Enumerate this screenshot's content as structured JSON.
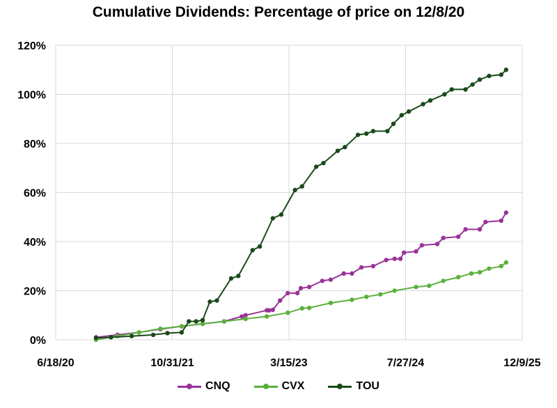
{
  "chart_data": {
    "type": "line",
    "title": "Cumulative Dividends: Percentage of price on 12/8/20",
    "xlabel": "",
    "ylabel": "",
    "x_axis": {
      "min": "2020-06-18",
      "max": "2025-12-09",
      "tick_labels": [
        "6/18/20",
        "10/31/21",
        "3/15/23",
        "7/27/24",
        "12/9/25"
      ]
    },
    "y_axis": {
      "min": 0,
      "max": 120,
      "tick_labels": [
        "0%",
        "20%",
        "40%",
        "60%",
        "80%",
        "100%",
        "120%"
      ]
    },
    "grid": true,
    "legend_position": "bottom",
    "series": [
      {
        "name": "CNQ",
        "color": "#993399",
        "points": [
          [
            "2020-12-08",
            1.0
          ],
          [
            "2021-03-10",
            2.0
          ],
          [
            "2021-06-10",
            3.0
          ],
          [
            "2021-09-10",
            4.3
          ],
          [
            "2021-12-10",
            5.5
          ],
          [
            "2022-03-10",
            6.5
          ],
          [
            "2022-06-10",
            7.5
          ],
          [
            "2022-08-25",
            9.5
          ],
          [
            "2022-09-10",
            10.0
          ],
          [
            "2022-12-10",
            12.0
          ],
          [
            "2022-12-20",
            12.0
          ],
          [
            "2023-01-05",
            12.2
          ],
          [
            "2023-02-05",
            16.0
          ],
          [
            "2023-03-10",
            19.0
          ],
          [
            "2023-04-20",
            19.0
          ],
          [
            "2023-05-05",
            21.0
          ],
          [
            "2023-06-10",
            21.5
          ],
          [
            "2023-08-05",
            24.0
          ],
          [
            "2023-09-10",
            24.5
          ],
          [
            "2023-11-05",
            27.0
          ],
          [
            "2023-12-10",
            27.0
          ],
          [
            "2024-01-20",
            29.5
          ],
          [
            "2024-03-10",
            30.0
          ],
          [
            "2024-05-05",
            32.5
          ],
          [
            "2024-06-10",
            33.0
          ],
          [
            "2024-07-05",
            33.0
          ],
          [
            "2024-07-20",
            35.5
          ],
          [
            "2024-09-10",
            36.0
          ],
          [
            "2024-10-05",
            38.5
          ],
          [
            "2024-12-10",
            39.0
          ],
          [
            "2025-01-05",
            41.5
          ],
          [
            "2025-03-10",
            42.0
          ],
          [
            "2025-04-10",
            45.0
          ],
          [
            "2025-06-10",
            45.0
          ],
          [
            "2025-07-05",
            48.0
          ],
          [
            "2025-09-10",
            48.5
          ],
          [
            "2025-10-01",
            51.8
          ]
        ]
      },
      {
        "name": "CVX",
        "color": "#5ab03c",
        "points": [
          [
            "2020-12-08",
            0.0
          ],
          [
            "2021-03-10",
            1.5
          ],
          [
            "2021-06-10",
            3.0
          ],
          [
            "2021-09-10",
            4.5
          ],
          [
            "2021-12-10",
            5.5
          ],
          [
            "2022-03-10",
            6.5
          ],
          [
            "2022-06-10",
            7.5
          ],
          [
            "2022-09-10",
            8.5
          ],
          [
            "2022-12-10",
            9.5
          ],
          [
            "2023-03-10",
            11.0
          ],
          [
            "2023-05-10",
            12.8
          ],
          [
            "2023-06-10",
            13.0
          ],
          [
            "2023-09-10",
            15.0
          ],
          [
            "2023-12-10",
            16.3
          ],
          [
            "2024-02-10",
            17.5
          ],
          [
            "2024-04-10",
            18.5
          ],
          [
            "2024-06-10",
            20.0
          ],
          [
            "2024-09-10",
            21.5
          ],
          [
            "2024-11-05",
            22.0
          ],
          [
            "2025-01-05",
            24.0
          ],
          [
            "2025-03-10",
            25.5
          ],
          [
            "2025-05-05",
            27.0
          ],
          [
            "2025-06-10",
            27.5
          ],
          [
            "2025-07-20",
            29.0
          ],
          [
            "2025-09-10",
            30.0
          ],
          [
            "2025-10-01",
            31.5
          ]
        ]
      },
      {
        "name": "TOU",
        "color": "#1a4a1a",
        "points": [
          [
            "2020-12-08",
            0.8
          ],
          [
            "2021-02-10",
            1.0
          ],
          [
            "2021-05-10",
            1.5
          ],
          [
            "2021-08-10",
            2.0
          ],
          [
            "2021-10-10",
            2.7
          ],
          [
            "2021-12-10",
            3.0
          ],
          [
            "2022-01-10",
            7.5
          ],
          [
            "2022-02-10",
            7.5
          ],
          [
            "2022-03-10",
            8.0
          ],
          [
            "2022-04-10",
            15.5
          ],
          [
            "2022-05-10",
            16.0
          ],
          [
            "2022-07-10",
            25.0
          ],
          [
            "2022-08-10",
            26.0
          ],
          [
            "2022-10-10",
            36.5
          ],
          [
            "2022-11-10",
            38.0
          ],
          [
            "2023-01-05",
            49.5
          ],
          [
            "2023-02-10",
            51.0
          ],
          [
            "2023-04-10",
            61.0
          ],
          [
            "2023-05-10",
            62.5
          ],
          [
            "2023-07-10",
            70.5
          ],
          [
            "2023-08-10",
            72.0
          ],
          [
            "2023-10-10",
            77.0
          ],
          [
            "2023-11-10",
            78.5
          ],
          [
            "2024-01-05",
            83.5
          ],
          [
            "2024-02-10",
            84.0
          ],
          [
            "2024-03-10",
            85.0
          ],
          [
            "2024-05-10",
            85.0
          ],
          [
            "2024-06-05",
            88.0
          ],
          [
            "2024-07-10",
            91.5
          ],
          [
            "2024-08-10",
            93.0
          ],
          [
            "2024-10-10",
            96.0
          ],
          [
            "2024-11-10",
            97.5
          ],
          [
            "2025-01-10",
            100.0
          ],
          [
            "2025-02-10",
            102.0
          ],
          [
            "2025-04-10",
            102.0
          ],
          [
            "2025-05-10",
            104.0
          ],
          [
            "2025-06-10",
            106.0
          ],
          [
            "2025-07-20",
            107.5
          ],
          [
            "2025-09-10",
            108.0
          ],
          [
            "2025-10-01",
            110.0
          ]
        ]
      }
    ]
  }
}
